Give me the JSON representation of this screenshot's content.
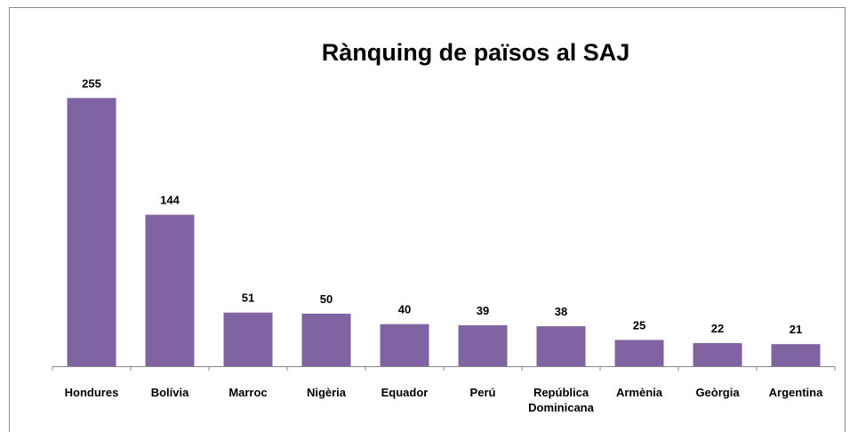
{
  "chart_data": {
    "type": "bar",
    "title": "Rànquing de països al SAJ",
    "categories": [
      "Hondures",
      "Bolívia",
      "Marroc",
      "Nigèria",
      "Equador",
      "Perú",
      "República Dominicana",
      "Armènia",
      "Geòrgia",
      "Argentina"
    ],
    "values": [
      255,
      144,
      51,
      50,
      40,
      39,
      38,
      25,
      22,
      21
    ],
    "color": "#8064a2",
    "ylim": [
      0,
      300
    ]
  }
}
